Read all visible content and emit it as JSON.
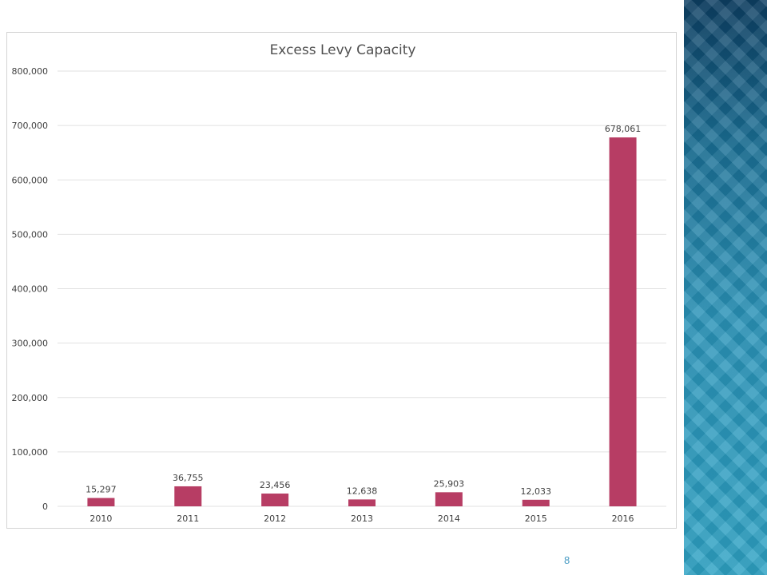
{
  "page": {
    "number": "8"
  },
  "colors": {
    "bar": "#b73d64",
    "gridline": "#e1e1e1",
    "axis_text": "#404040",
    "title_text": "#505050",
    "side_band": "#1f7ea6"
  },
  "chart_data": {
    "type": "bar",
    "title": "Excess Levy Capacity",
    "xlabel": "",
    "ylabel": "",
    "categories": [
      "2010",
      "2011",
      "2012",
      "2013",
      "2014",
      "2015",
      "2016"
    ],
    "values": [
      15297,
      36755,
      23456,
      12638,
      25903,
      12033,
      678061
    ],
    "value_labels": [
      "15,297",
      "36,755",
      "23,456",
      "12,638",
      "25,903",
      "12,033",
      "678,061"
    ],
    "ylim": [
      0,
      800000
    ],
    "yticks": [
      0,
      100000,
      200000,
      300000,
      400000,
      500000,
      600000,
      700000,
      800000
    ],
    "ytick_labels": [
      "0",
      "100,000",
      "200,000",
      "300,000",
      "400,000",
      "500,000",
      "600,000",
      "700,000",
      "800,000"
    ],
    "grid": true,
    "legend": "none"
  }
}
